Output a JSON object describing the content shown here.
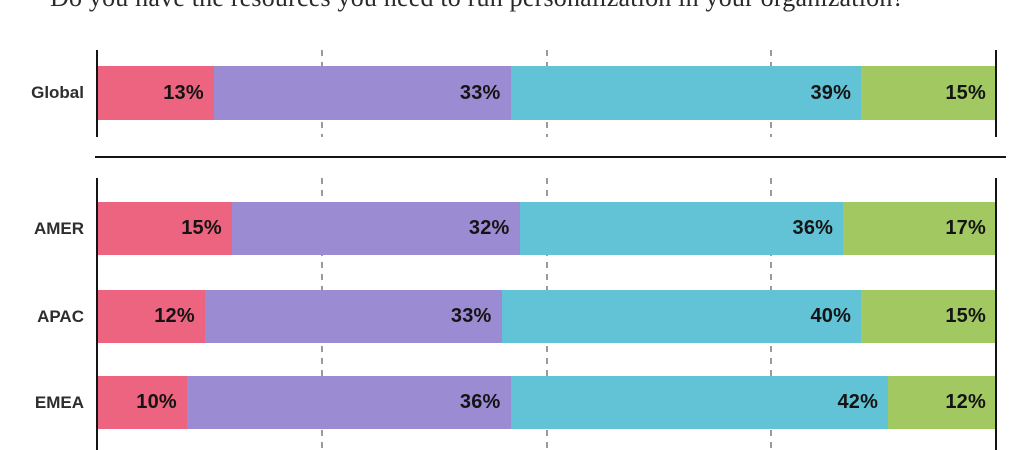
{
  "title": "Do you have the resources you need to run personalization in your organization?",
  "colors": {
    "segment_pink": "#EC6480",
    "segment_purple": "#9A8BD3",
    "segment_teal": "#62C3D6",
    "segment_green": "#A2C862",
    "axis": "#141414",
    "gridline": "#9B9B9B",
    "value_label": "#141414",
    "row_label": "#2D2D2D"
  },
  "chart_data": {
    "type": "bar",
    "orientation": "horizontal",
    "stacked": true,
    "unit": "%",
    "xlim": [
      0,
      100
    ],
    "grid": "dashed-vertical",
    "gridlines_pct": [
      25,
      50,
      75
    ],
    "legend": "none-visible",
    "segment_colors": [
      "#EC6480",
      "#9A8BD3",
      "#62C3D6",
      "#A2C862"
    ],
    "segment_names": [
      "pink",
      "purple",
      "teal",
      "green"
    ],
    "groups": [
      {
        "name": "global",
        "rows": [
          {
            "label": "Global",
            "values": [
              13,
              33,
              39,
              15
            ]
          }
        ]
      },
      {
        "name": "regions",
        "rows": [
          {
            "label": "AMER",
            "values": [
              15,
              32,
              36,
              17
            ]
          },
          {
            "label": "APAC",
            "values": [
              12,
              33,
              40,
              15
            ]
          },
          {
            "label": "EMEA",
            "values": [
              10,
              36,
              42,
              12
            ]
          }
        ]
      }
    ]
  }
}
